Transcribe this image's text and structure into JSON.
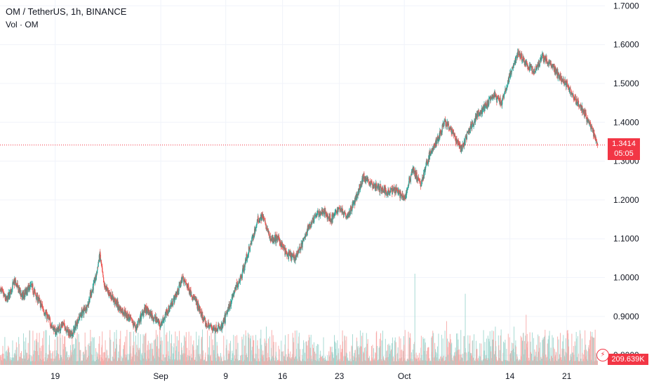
{
  "legend": {
    "title": "OM / TetherUS, 1h, BINANCE",
    "volume": "Vol · OM"
  },
  "last_price": {
    "value": "1.3414",
    "countdown": "05:05"
  },
  "last_volume": "209.639K",
  "colors": {
    "up": "#26a69a",
    "down": "#ef5350",
    "up_volume": "#9fd6cf",
    "down_volume": "#f7a9a7",
    "grid": "#f0f3fa",
    "axis_text": "#131722",
    "price_line": "#f23645"
  },
  "chart_data": {
    "type": "candlestick",
    "symbol": "OM / TetherUS",
    "interval": "1h",
    "exchange": "BINANCE",
    "y_axis": {
      "ticks": [
        "0.8000",
        "0.9000",
        "1.0000",
        "1.1000",
        "1.2000",
        "1.3000",
        "1.4000",
        "1.5000",
        "1.6000",
        "1.7000"
      ],
      "range": [
        0.775,
        1.715
      ]
    },
    "x_axis": {
      "ticks": [
        {
          "label": "19",
          "day": 0
        },
        {
          "label": "Sep",
          "day": 13
        },
        {
          "label": "9",
          "day": 21
        },
        {
          "label": "16",
          "day": 28
        },
        {
          "label": "23",
          "day": 35
        },
        {
          "label": "Oct",
          "day": 43
        },
        {
          "label": "14",
          "day": 56
        },
        {
          "label": "21",
          "day": 63
        }
      ],
      "range_days": [
        -6.8,
        67.7
      ]
    },
    "price_path": [
      [
        -7.0,
        0.98
      ],
      [
        -6.0,
        0.94
      ],
      [
        -5.0,
        0.99
      ],
      [
        -4.0,
        0.95
      ],
      [
        -3.0,
        0.98
      ],
      [
        -2.0,
        0.94
      ],
      [
        -1.0,
        0.9
      ],
      [
        0.0,
        0.86
      ],
      [
        1.0,
        0.88
      ],
      [
        2.0,
        0.85
      ],
      [
        3.0,
        0.9
      ],
      [
        4.0,
        0.93
      ],
      [
        5.0,
        1.0
      ],
      [
        5.5,
        1.06
      ],
      [
        6.0,
        0.98
      ],
      [
        7.0,
        0.95
      ],
      [
        8.0,
        0.92
      ],
      [
        9.0,
        0.9
      ],
      [
        10.0,
        0.87
      ],
      [
        11.0,
        0.92
      ],
      [
        12.0,
        0.9
      ],
      [
        13.0,
        0.88
      ],
      [
        14.0,
        0.92
      ],
      [
        15.0,
        0.96
      ],
      [
        15.7,
        1.0
      ],
      [
        16.5,
        0.97
      ],
      [
        17.5,
        0.93
      ],
      [
        18.5,
        0.88
      ],
      [
        19.5,
        0.87
      ],
      [
        20.5,
        0.87
      ],
      [
        21.0,
        0.9
      ],
      [
        22.0,
        0.96
      ],
      [
        23.0,
        1.01
      ],
      [
        24.0,
        1.08
      ],
      [
        25.0,
        1.15
      ],
      [
        25.5,
        1.16
      ],
      [
        26.5,
        1.1
      ],
      [
        27.5,
        1.1
      ],
      [
        28.5,
        1.06
      ],
      [
        29.5,
        1.05
      ],
      [
        30.5,
        1.09
      ],
      [
        31.0,
        1.12
      ],
      [
        32.0,
        1.16
      ],
      [
        33.0,
        1.17
      ],
      [
        34.0,
        1.15
      ],
      [
        35.0,
        1.18
      ],
      [
        36.0,
        1.16
      ],
      [
        37.0,
        1.2
      ],
      [
        38.0,
        1.26
      ],
      [
        39.0,
        1.24
      ],
      [
        40.0,
        1.23
      ],
      [
        41.0,
        1.22
      ],
      [
        42.0,
        1.23
      ],
      [
        43.0,
        1.2
      ],
      [
        44.0,
        1.28
      ],
      [
        45.0,
        1.24
      ],
      [
        46.0,
        1.31
      ],
      [
        47.0,
        1.35
      ],
      [
        48.0,
        1.4
      ],
      [
        49.0,
        1.37
      ],
      [
        50.0,
        1.33
      ],
      [
        51.0,
        1.38
      ],
      [
        52.0,
        1.42
      ],
      [
        53.0,
        1.44
      ],
      [
        54.0,
        1.47
      ],
      [
        55.0,
        1.45
      ],
      [
        56.0,
        1.52
      ],
      [
        57.0,
        1.58
      ],
      [
        58.0,
        1.55
      ],
      [
        59.0,
        1.53
      ],
      [
        60.0,
        1.57
      ],
      [
        61.0,
        1.55
      ],
      [
        62.0,
        1.52
      ],
      [
        63.0,
        1.5
      ],
      [
        64.0,
        1.46
      ],
      [
        65.0,
        1.43
      ],
      [
        66.0,
        1.39
      ],
      [
        66.8,
        1.3414
      ]
    ],
    "last_price": 1.3414,
    "volume_spikes": [
      {
        "day": 44.3,
        "value": 1.0
      },
      {
        "day": 50.5,
        "value": 0.78
      },
      {
        "day": 58.0,
        "value": 0.55
      },
      {
        "day": 54.2,
        "value": 0.42
      },
      {
        "day": 48.2,
        "value": 0.48
      },
      {
        "day": 13.4,
        "value": 0.5
      },
      {
        "day": 23.5,
        "value": 0.32
      },
      {
        "day": 26.0,
        "value": 0.42
      },
      {
        "day": 46.6,
        "value": 0.35
      },
      {
        "day": 56.5,
        "value": 0.42
      }
    ],
    "last_volume": "209.639K"
  }
}
